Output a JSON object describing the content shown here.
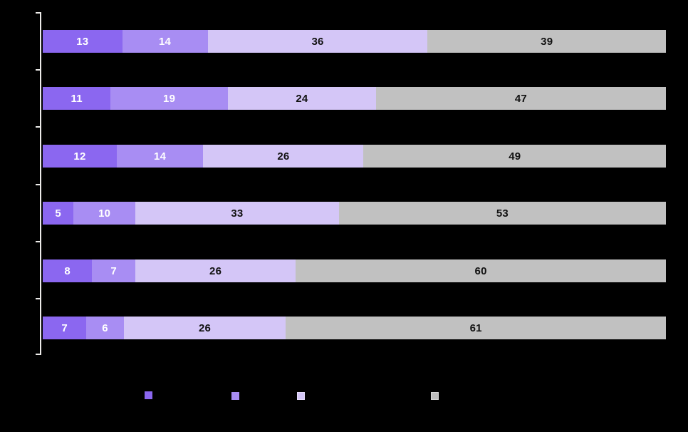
{
  "chart_data": {
    "type": "bar",
    "orientation": "horizontal",
    "stacked": true,
    "normalized_100_percent": true,
    "background_color": "#000000",
    "axis_color": "#ecebe9",
    "grid": false,
    "categories": [
      "",
      "",
      "",
      "",
      "",
      ""
    ],
    "series": [
      {
        "name": "segment-1-dark-purple",
        "color": "#8b67f0",
        "label_color": "#ffffff",
        "values": [
          13,
          11,
          12,
          5,
          8,
          7
        ]
      },
      {
        "name": "segment-2-medium-purple",
        "color": "#a88df3",
        "label_color": "#ffffff",
        "values": [
          14,
          19,
          14,
          10,
          7,
          6
        ]
      },
      {
        "name": "segment-3-light-purple",
        "color": "#d4c6f7",
        "label_color": "#111111",
        "values": [
          36,
          24,
          26,
          33,
          26,
          26
        ]
      },
      {
        "name": "segment-4-gray",
        "color": "#c1c1c1",
        "label_color": "#111111",
        "values": [
          39,
          47,
          49,
          53,
          60,
          61
        ]
      }
    ],
    "data_labels_visible": true,
    "legend": {
      "position": "bottom",
      "items": [
        {
          "swatch_color": "#8b67f0",
          "swatch_border": "#8b67f0"
        },
        {
          "swatch_color": "#a88df3",
          "swatch_border": "#a88df3"
        },
        {
          "swatch_color": "#d4c6f7",
          "swatch_border": "#e6ddfb"
        },
        {
          "swatch_color": "#bdbdbd",
          "swatch_border": "#d6d6d6"
        }
      ]
    }
  }
}
